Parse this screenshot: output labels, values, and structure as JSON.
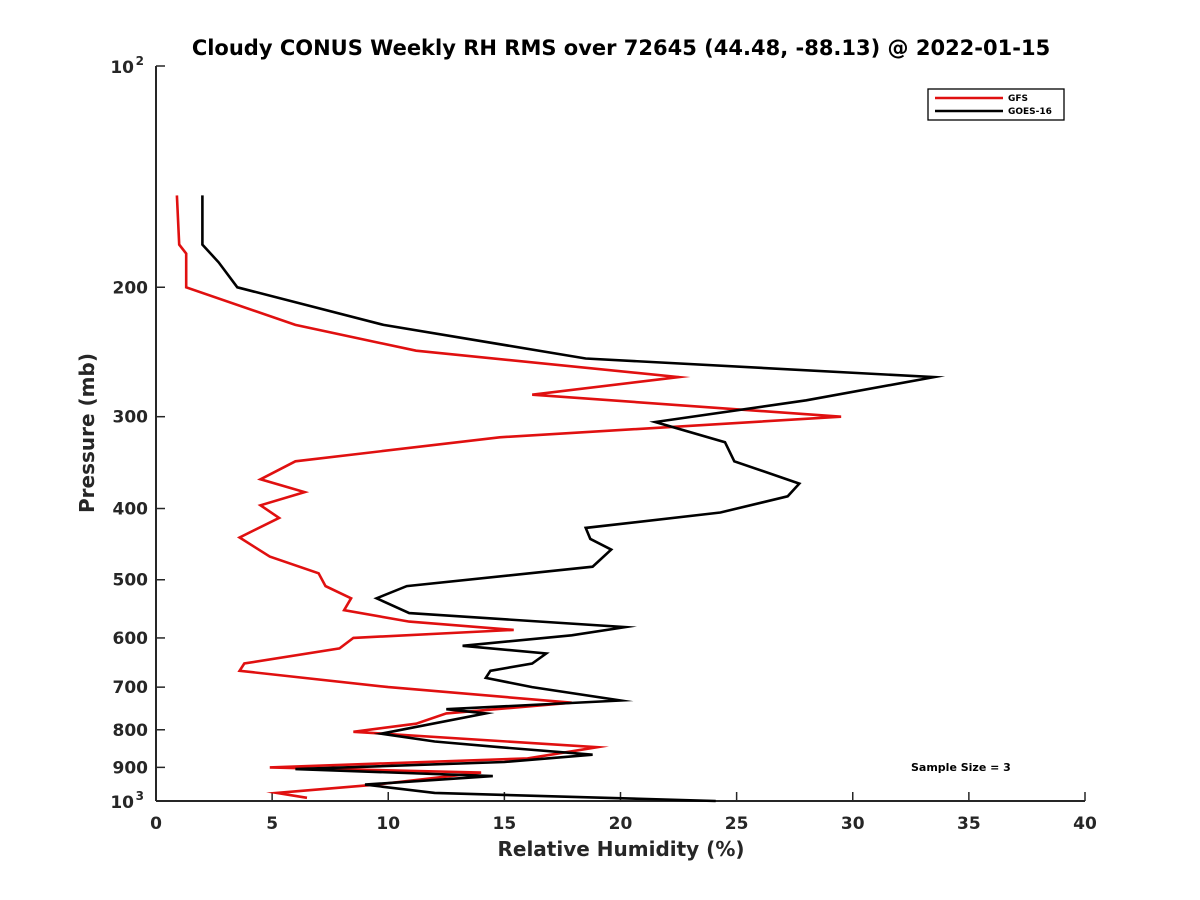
{
  "chart_data": {
    "type": "line",
    "title": "Cloudy CONUS Weekly RH RMS over 72645 (44.48, -88.13) @ 2022-01-15",
    "xlabel": "Relative Humidity (%)",
    "ylabel": "Pressure (mb)",
    "xlim": [
      0,
      40
    ],
    "ylim": [
      100,
      1000
    ],
    "yscale": "log",
    "yreversed": true,
    "x_ticks": [
      "0",
      "5",
      "10",
      "15",
      "20",
      "25",
      "30",
      "35",
      "40"
    ],
    "y_ticks": [
      {
        "value": 100,
        "base": "10",
        "exp": "2"
      },
      {
        "value": 200,
        "label": "200"
      },
      {
        "value": 300,
        "label": "300"
      },
      {
        "value": 400,
        "label": "400"
      },
      {
        "value": 500,
        "label": "500"
      },
      {
        "value": 600,
        "label": "600"
      },
      {
        "value": 700,
        "label": "700"
      },
      {
        "value": 800,
        "label": "800"
      },
      {
        "value": 900,
        "label": "900"
      },
      {
        "value": 1000,
        "base": "10",
        "exp": "3"
      }
    ],
    "legend_position": "top-right",
    "annotation": "Sample Size = 3",
    "series": [
      {
        "name": "GFS",
        "color": "#e01010",
        "points": [
          [
            0.9,
            150
          ],
          [
            1.0,
            175
          ],
          [
            1.3,
            180
          ],
          [
            1.3,
            200
          ],
          [
            6.0,
            225
          ],
          [
            11.2,
            244
          ],
          [
            22.5,
            265
          ],
          [
            16.2,
            280
          ],
          [
            29.5,
            300
          ],
          [
            14.8,
            320
          ],
          [
            6.0,
            345
          ],
          [
            4.5,
            365
          ],
          [
            6.4,
            380
          ],
          [
            4.5,
            396
          ],
          [
            5.3,
            412
          ],
          [
            3.6,
            438
          ],
          [
            4.9,
            465
          ],
          [
            7.0,
            490
          ],
          [
            7.3,
            510
          ],
          [
            8.4,
            530
          ],
          [
            8.1,
            550
          ],
          [
            10.9,
            570
          ],
          [
            15.4,
            585
          ],
          [
            8.5,
            600
          ],
          [
            7.9,
            620
          ],
          [
            3.8,
            650
          ],
          [
            3.6,
            665
          ],
          [
            10.0,
            700
          ],
          [
            17.9,
            735
          ],
          [
            12.5,
            760
          ],
          [
            11.2,
            785
          ],
          [
            8.5,
            805
          ],
          [
            19.0,
            845
          ],
          [
            16.0,
            875
          ],
          [
            4.9,
            900
          ],
          [
            14.0,
            915
          ],
          [
            9.5,
            950
          ],
          [
            5.2,
            975
          ],
          [
            6.5,
            990
          ]
        ]
      },
      {
        "name": "GOES-16",
        "color": "#000000",
        "points": [
          [
            2.0,
            150
          ],
          [
            2.0,
            175
          ],
          [
            2.7,
            185
          ],
          [
            3.5,
            200
          ],
          [
            9.8,
            225
          ],
          [
            18.5,
            250
          ],
          [
            33.5,
            265
          ],
          [
            28.0,
            285
          ],
          [
            21.5,
            305
          ],
          [
            24.5,
            325
          ],
          [
            24.9,
            345
          ],
          [
            27.7,
            370
          ],
          [
            27.2,
            385
          ],
          [
            24.3,
            405
          ],
          [
            18.5,
            425
          ],
          [
            18.7,
            440
          ],
          [
            19.6,
            455
          ],
          [
            18.8,
            480
          ],
          [
            10.8,
            510
          ],
          [
            9.5,
            530
          ],
          [
            10.9,
            555
          ],
          [
            20.2,
            580
          ],
          [
            17.9,
            595
          ],
          [
            13.2,
            615
          ],
          [
            16.8,
            630
          ],
          [
            16.2,
            650
          ],
          [
            14.4,
            665
          ],
          [
            14.2,
            680
          ],
          [
            16.2,
            700
          ],
          [
            20.0,
            730
          ],
          [
            12.5,
            750
          ],
          [
            14.2,
            760
          ],
          [
            9.7,
            810
          ],
          [
            12.0,
            830
          ],
          [
            14.8,
            845
          ],
          [
            18.8,
            865
          ],
          [
            15.0,
            885
          ],
          [
            6.0,
            905
          ],
          [
            14.5,
            925
          ],
          [
            9.0,
            950
          ],
          [
            12.0,
            975
          ],
          [
            24.1,
            1000
          ]
        ]
      }
    ]
  }
}
